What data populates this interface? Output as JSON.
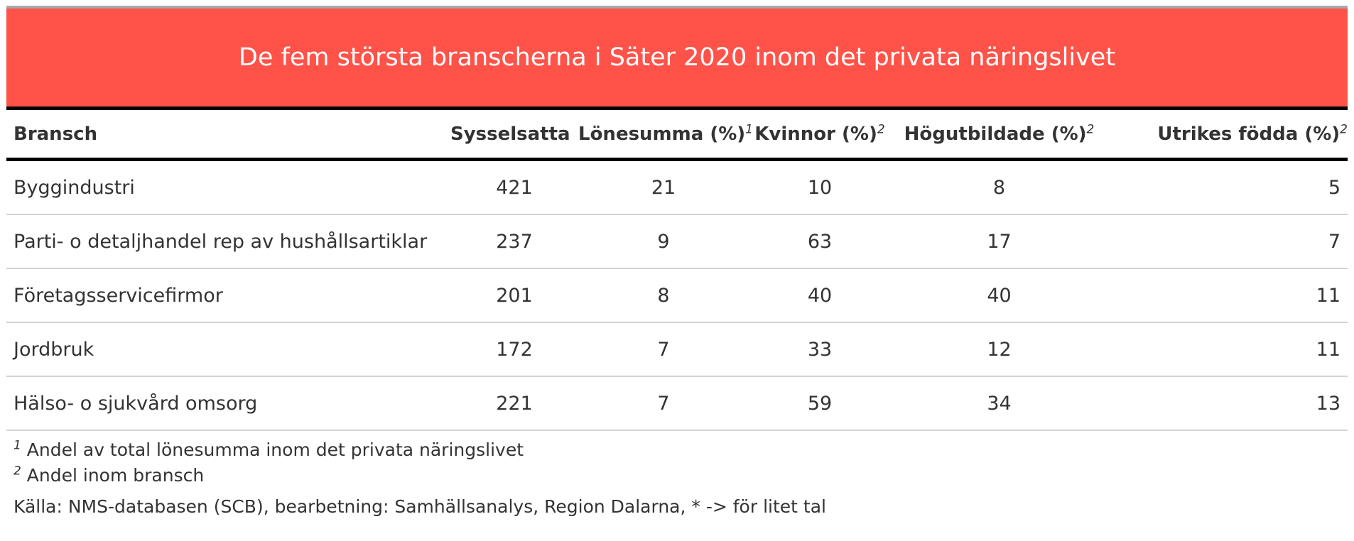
{
  "title": "De fem största branscherna i Säter 2020 inom det privata näringslivet",
  "columns": [
    {
      "label": "Bransch",
      "note": ""
    },
    {
      "label": "Sysselsatta",
      "note": ""
    },
    {
      "label": "Lönesumma (%)",
      "note": "1"
    },
    {
      "label": "Kvinnor (%)",
      "note": "2"
    },
    {
      "label": "Högutbildade (%)",
      "note": "2"
    },
    {
      "label": "Utrikes födda (%)",
      "note": "2"
    }
  ],
  "rows": [
    [
      "Byggindustri",
      "421",
      "21",
      "10",
      "8",
      "5"
    ],
    [
      "Parti- o detaljhandel rep av hushållsartiklar",
      "237",
      "9",
      "63",
      "17",
      "7"
    ],
    [
      "Företagsservicefirmor",
      "201",
      "8",
      "40",
      "40",
      "11"
    ],
    [
      "Jordbruk",
      "172",
      "7",
      "33",
      "12",
      "11"
    ],
    [
      "Hälso- o sjukvård omsorg",
      "221",
      "7",
      "59",
      "34",
      "13"
    ]
  ],
  "footnotes": [
    {
      "mark": "1",
      "text": "Andel av total lönesumma inom det privata näringslivet"
    },
    {
      "mark": "2",
      "text": "Andel inom bransch"
    }
  ],
  "source": "Källa: NMS-databasen (SCB), bearbetning: Samhällsanalys, Region Dalarna, * -> för litet tal",
  "colors": {
    "header_bg": "#ff5349",
    "header_text": "#ffffff",
    "text": "#333333"
  }
}
